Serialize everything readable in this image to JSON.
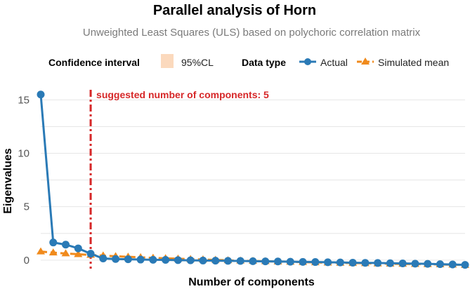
{
  "chart_data": {
    "type": "line",
    "title": "Parallel analysis of Horn",
    "subtitle": "Unweighted Least Squares (ULS) based on polychoric correlation matrix",
    "xlabel": "Number of components",
    "ylabel": "Eigenvalues",
    "xlim": [
      1,
      35
    ],
    "ylim": [
      -0.8,
      16.6
    ],
    "yticks": [
      0,
      5,
      10,
      15
    ],
    "grid": true,
    "legend_position": "top",
    "legend": {
      "ci_title": "Confidence interval",
      "ci_label": "95%CL",
      "type_title": "Data type"
    },
    "colors": {
      "actual": "#2a7ab6",
      "simulated": "#f08a1c",
      "ci_fill": "#fbd9bd",
      "annotation": "#d62728"
    },
    "x": [
      1,
      2,
      3,
      4,
      5,
      6,
      7,
      8,
      9,
      10,
      11,
      12,
      13,
      14,
      15,
      16,
      17,
      18,
      19,
      20,
      21,
      22,
      23,
      24,
      25,
      26,
      27,
      28,
      29,
      30,
      31,
      32,
      33,
      34,
      35
    ],
    "series": [
      {
        "name": "Actual",
        "marker": "circle",
        "values": [
          15.5,
          1.65,
          1.45,
          1.1,
          0.6,
          0.15,
          0.1,
          0.08,
          0.05,
          0.03,
          0.02,
          0.0,
          -0.02,
          -0.04,
          -0.05,
          -0.07,
          -0.08,
          -0.1,
          -0.12,
          -0.13,
          -0.15,
          -0.17,
          -0.18,
          -0.2,
          -0.22,
          -0.24,
          -0.26,
          -0.27,
          -0.29,
          -0.31,
          -0.33,
          -0.35,
          -0.38,
          -0.41,
          -0.45
        ]
      },
      {
        "name": "Simulated mean",
        "marker": "triangle",
        "values": [
          0.8,
          0.7,
          0.62,
          0.55,
          0.48,
          0.42,
          0.36,
          0.31,
          0.26,
          0.21,
          0.17,
          0.13,
          0.09,
          0.05,
          0.02,
          -0.02,
          -0.05,
          -0.08,
          -0.11,
          -0.14,
          -0.17,
          -0.19,
          -0.22,
          -0.24,
          -0.26,
          -0.28,
          -0.3,
          -0.32,
          -0.34,
          -0.36,
          -0.37,
          -0.39,
          -0.41,
          -0.43,
          -0.46
        ]
      }
    ],
    "vline": {
      "x": 5,
      "label": "suggested number of components: 5"
    }
  }
}
